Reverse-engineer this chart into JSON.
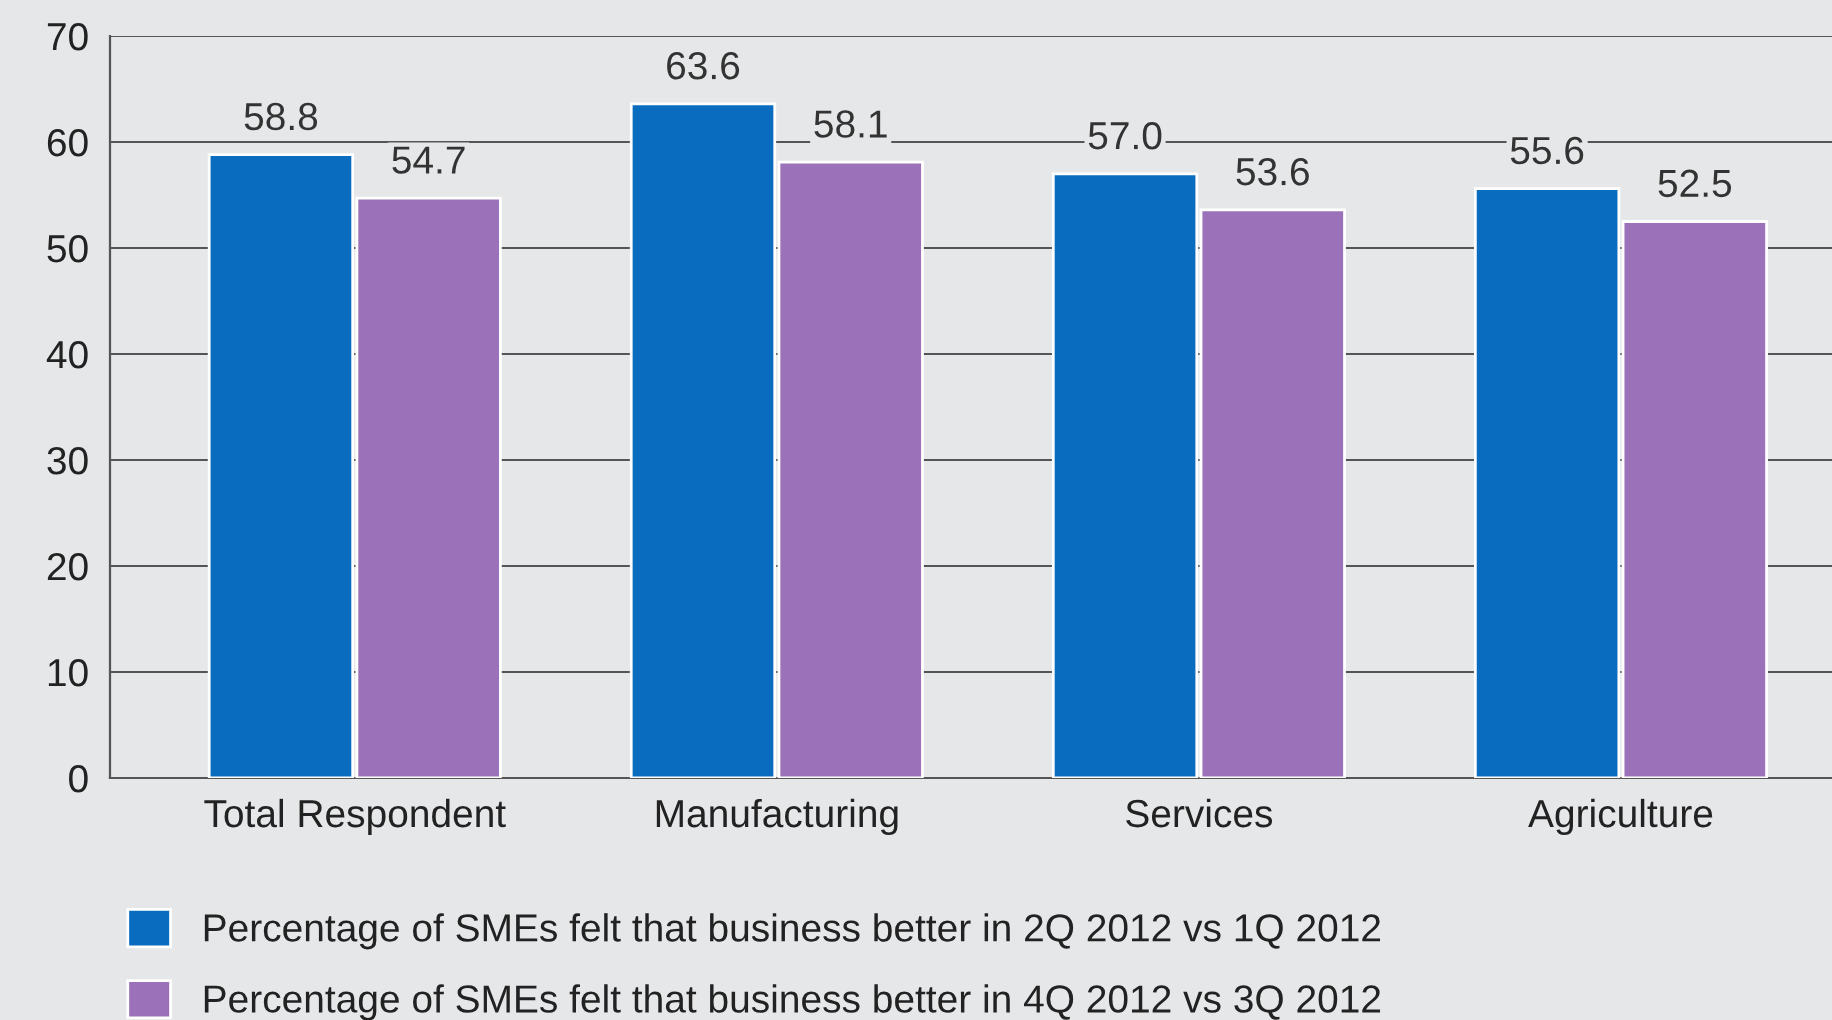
{
  "chart_data": {
    "type": "bar",
    "categories": [
      "Total Respondent",
      "Manufacturing",
      "Services",
      "Agriculture"
    ],
    "series": [
      {
        "name": "Percentage of SMEs felt that business better in 2Q 2012 vs 1Q 2012",
        "color": "#0a6cbf",
        "values": [
          58.8,
          63.6,
          57.0,
          55.6
        ],
        "value_labels": [
          "58.8",
          "63.6",
          "57.0",
          "55.6"
        ]
      },
      {
        "name": "Percentage of SMEs felt that business better in 4Q 2012 vs 3Q 2012",
        "color": "#9b72b9",
        "values": [
          54.7,
          58.1,
          53.6,
          52.5
        ],
        "value_labels": [
          "54.7",
          "58.1",
          "53.6",
          "52.5"
        ]
      }
    ],
    "ylim": [
      0,
      70
    ],
    "yticks": [
      0,
      10,
      20,
      30,
      40,
      50,
      60,
      70
    ],
    "grid": "y",
    "legend": "bottom"
  }
}
